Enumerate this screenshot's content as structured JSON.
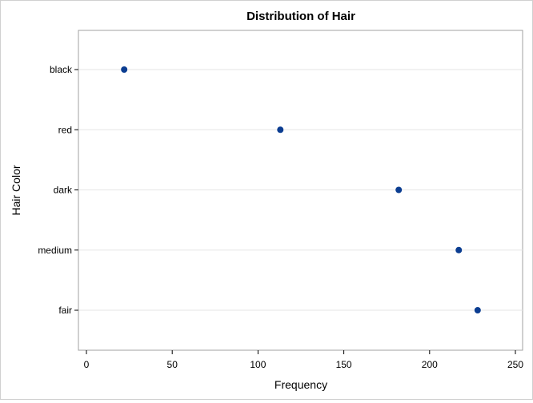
{
  "chart_data": {
    "type": "scatter",
    "title": "Distribution of Hair",
    "xlabel": "Frequency",
    "ylabel": "Hair Color",
    "xlim": [
      0,
      250
    ],
    "xticks": [
      0,
      50,
      100,
      150,
      200,
      250
    ],
    "categories": [
      "black",
      "red",
      "dark",
      "medium",
      "fair"
    ],
    "values": [
      22,
      113,
      182,
      217,
      228
    ],
    "grid": "horizontal",
    "marker_color": "#0b3d91",
    "grid_color": "#e6e6e6",
    "frame_color": "#a0a0a0"
  }
}
